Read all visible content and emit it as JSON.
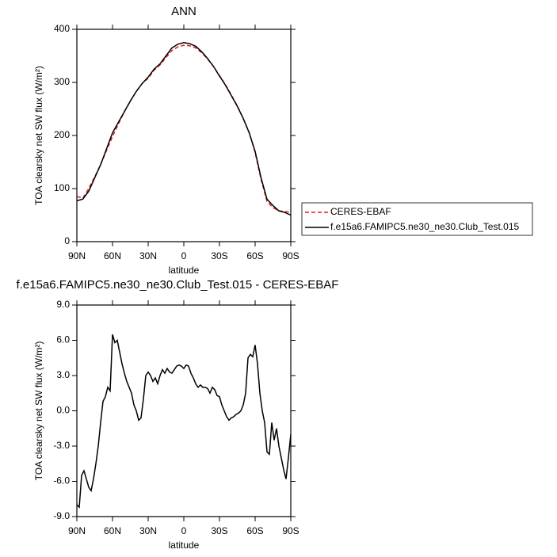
{
  "chart_data": [
    {
      "type": "line",
      "title": "ANN",
      "xlabel": "latitude",
      "ylabel": "TOA clearsky net SW flux (W/m²)",
      "x": [
        90,
        85,
        80,
        75,
        70,
        65,
        60,
        55,
        50,
        45,
        40,
        35,
        30,
        25,
        20,
        15,
        10,
        5,
        0,
        -5,
        -10,
        -15,
        -20,
        -25,
        -30,
        -35,
        -40,
        -45,
        -50,
        -55,
        -60,
        -65,
        -70,
        -75,
        -80,
        -85,
        -90
      ],
      "series": [
        {
          "name": "CERES-EBAF",
          "color": "#e41a1c",
          "linestyle": "dashed",
          "values": [
            85,
            82,
            100,
            122,
            145,
            172,
            198,
            222,
            245,
            265,
            283,
            298,
            308,
            323,
            333,
            347,
            360,
            367,
            370,
            369,
            365,
            356,
            344,
            330,
            313,
            296,
            276,
            256,
            232,
            206,
            168,
            117,
            76,
            64,
            58,
            57,
            55
          ]
        },
        {
          "name": "f.e15a6.FAMIPC5.ne30_ne30.Club_Test.015",
          "color": "#000000",
          "linestyle": "solid",
          "values": [
            77,
            80,
            95,
            120,
            145,
            175,
            205,
            225,
            245,
            265,
            283,
            298,
            310,
            325,
            335,
            350,
            365,
            372,
            375,
            373,
            368,
            358,
            345,
            330,
            312,
            295,
            275,
            255,
            232,
            205,
            170,
            120,
            80,
            68,
            58,
            55,
            50
          ]
        }
      ],
      "xlim": [
        90,
        -90
      ],
      "xticks": [
        {
          "value": 90,
          "label": "90N"
        },
        {
          "value": 60,
          "label": "60N"
        },
        {
          "value": 30,
          "label": "30N"
        },
        0,
        {
          "value": -30,
          "label": "30S"
        },
        {
          "value": -60,
          "label": "60S"
        },
        {
          "value": -90,
          "label": "90S"
        }
      ],
      "ylim": [
        0,
        400
      ],
      "yticks": [
        0,
        100,
        200,
        300,
        400
      ],
      "legend": "right"
    },
    {
      "type": "line",
      "title": "f.e15a6.FAMIPC5.ne30_ne30.Club_Test.015 - CERES-EBAF",
      "xlabel": "latitude",
      "ylabel": "TOA clearsky net SW flux (W/m²)",
      "x": [
        90,
        88,
        86,
        84,
        82,
        80,
        78,
        76,
        74,
        72,
        70,
        68,
        66,
        64,
        62,
        60,
        58,
        56,
        54,
        52,
        50,
        48,
        46,
        44,
        42,
        40,
        38,
        36,
        34,
        32,
        30,
        28,
        26,
        24,
        22,
        20,
        18,
        16,
        14,
        12,
        10,
        8,
        6,
        4,
        2,
        0,
        -2,
        -4,
        -6,
        -8,
        -10,
        -12,
        -14,
        -16,
        -18,
        -20,
        -22,
        -24,
        -26,
        -28,
        -30,
        -32,
        -34,
        -36,
        -38,
        -40,
        -42,
        -44,
        -46,
        -48,
        -50,
        -52,
        -54,
        -56,
        -58,
        -60,
        -62,
        -64,
        -66,
        -68,
        -70,
        -72,
        -74,
        -76,
        -78,
        -80,
        -82,
        -84,
        -86,
        -88,
        -90
      ],
      "values": [
        -8.0,
        -8.2,
        -5.5,
        -5.1,
        -5.8,
        -6.5,
        -6.8,
        -5.8,
        -4.5,
        -3.0,
        -1.0,
        0.8,
        1.2,
        2.0,
        1.7,
        6.5,
        5.8,
        6.0,
        5.0,
        4.0,
        3.2,
        2.5,
        2.0,
        1.5,
        0.5,
        0.0,
        -0.8,
        -0.6,
        1.0,
        3.0,
        3.3,
        3.0,
        2.5,
        2.8,
        2.3,
        3.0,
        3.5,
        3.2,
        3.6,
        3.3,
        3.2,
        3.5,
        3.8,
        3.9,
        3.8,
        3.6,
        3.9,
        3.8,
        3.2,
        2.8,
        2.3,
        2.0,
        2.2,
        2.0,
        2.0,
        1.9,
        1.5,
        2.0,
        1.8,
        1.3,
        1.2,
        0.5,
        0.0,
        -0.5,
        -0.8,
        -0.6,
        -0.5,
        -0.3,
        -0.2,
        0.0,
        0.5,
        1.5,
        4.5,
        4.8,
        4.6,
        5.6,
        4.0,
        1.5,
        0.0,
        -1.0,
        -3.5,
        -3.7,
        -1.0,
        -2.5,
        -1.5,
        -3.0,
        -4.0,
        -5.0,
        -5.8,
        -4.0,
        -2.0
      ],
      "color": "#000000",
      "xlim": [
        90,
        -90
      ],
      "xticks": [
        {
          "value": 90,
          "label": "90N"
        },
        {
          "value": 60,
          "label": "60N"
        },
        {
          "value": 30,
          "label": "30N"
        },
        0,
        {
          "value": -30,
          "label": "30S"
        },
        {
          "value": -60,
          "label": "60S"
        },
        {
          "value": -90,
          "label": "90S"
        }
      ],
      "ylim": [
        -9,
        9
      ],
      "yticks": [
        {
          "value": -9,
          "label": "-9.0"
        },
        {
          "value": -6,
          "label": "-6.0"
        },
        {
          "value": -3,
          "label": "-3.0"
        },
        {
          "value": 0,
          "label": "0.0"
        },
        {
          "value": 3,
          "label": "3.0"
        },
        {
          "value": 6,
          "label": "6.0"
        },
        {
          "value": 9,
          "label": "9.0"
        }
      ]
    }
  ]
}
